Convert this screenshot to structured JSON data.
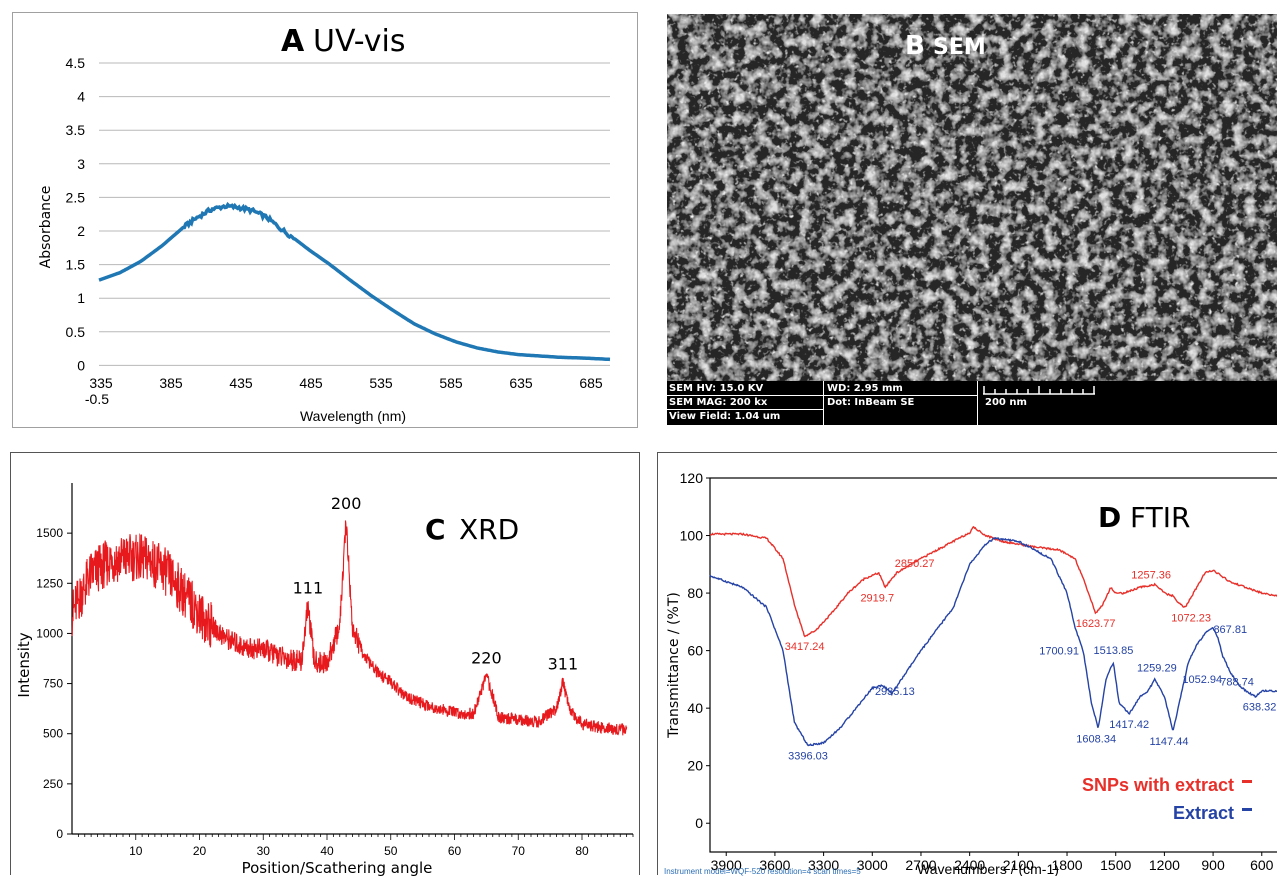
{
  "chart_data": [
    {
      "panel": "A",
      "type": "line",
      "title_letter": "A",
      "title": "UV-vis",
      "xlabel": "Wavelength (nm)",
      "ylabel": "Absorbance",
      "x_ticks": [
        "335",
        "385",
        "435",
        "485",
        "535",
        "585",
        "635",
        "685"
      ],
      "y_ticks": [
        "-0.5",
        "0",
        "0.5",
        "1",
        "1.5",
        "2",
        "2.5",
        "3",
        "3.5",
        "4",
        "4.5"
      ],
      "xlim": [
        335,
        700
      ],
      "ylim": [
        -0.5,
        4.5
      ],
      "grid": true,
      "series": [
        {
          "x": [
            335,
            350,
            365,
            380,
            395,
            405,
            415,
            425,
            435,
            445,
            455,
            465,
            475,
            485,
            500,
            515,
            530,
            545,
            560,
            575,
            590,
            605,
            620,
            635,
            650,
            665,
            680,
            700
          ],
          "y": [
            1.27,
            1.38,
            1.55,
            1.78,
            2.05,
            2.2,
            2.32,
            2.37,
            2.35,
            2.3,
            2.2,
            2.03,
            1.88,
            1.72,
            1.5,
            1.26,
            1.03,
            0.82,
            0.62,
            0.47,
            0.35,
            0.26,
            0.2,
            0.16,
            0.14,
            0.12,
            0.11,
            0.09
          ]
        }
      ],
      "color": "#1f77b4"
    },
    {
      "panel": "B",
      "type": "image",
      "title_letter": "B",
      "title": "SEM",
      "info": {
        "hv": "SEM HV: 15.0 KV",
        "mag": "SEM MAG: 200 kx",
        "field": "View Field: 1.04 um",
        "wd": "WD: 2.95 mm",
        "det": "Dot: InBeam SE",
        "scale": "200 nm"
      }
    },
    {
      "panel": "C",
      "type": "line",
      "title_letter": "C",
      "title": "XRD",
      "xlabel": "Position/Scathering angle",
      "ylabel": "Intensity",
      "x_ticks": [
        "10",
        "20",
        "30",
        "40",
        "50",
        "60",
        "70",
        "80"
      ],
      "y_ticks": [
        "0",
        "250",
        "500",
        "750",
        "1000",
        "1250",
        "1500"
      ],
      "xlim": [
        0,
        88
      ],
      "ylim": [
        0,
        1750
      ],
      "peaks": [
        {
          "label": "111",
          "x": 37,
          "y": 1140
        },
        {
          "label": "200",
          "x": 43,
          "y": 1560
        },
        {
          "label": "220",
          "x": 65,
          "y": 790
        },
        {
          "label": "311",
          "x": 77,
          "y": 760
        }
      ],
      "series": [
        {
          "x": [
            0,
            3,
            6,
            9,
            12,
            15,
            18,
            21,
            24,
            27,
            30,
            33,
            36,
            37,
            38,
            40,
            42,
            43,
            44,
            46,
            48,
            50,
            52,
            55,
            58,
            61,
            63,
            65,
            67,
            70,
            73,
            76,
            77,
            78,
            80,
            83,
            87
          ],
          "y": [
            1100,
            1300,
            1360,
            1380,
            1370,
            1300,
            1180,
            1060,
            980,
            930,
            920,
            880,
            860,
            1140,
            860,
            850,
            1040,
            1560,
            1020,
            880,
            800,
            760,
            690,
            650,
            620,
            600,
            600,
            790,
            580,
            570,
            560,
            620,
            760,
            620,
            550,
            530,
            520
          ]
        }
      ],
      "color": "#e8191d"
    },
    {
      "panel": "D",
      "type": "line",
      "title_letter": "D",
      "title": "FTIR",
      "xlabel": "Wavenumbers / (cm-1)",
      "ylabel": "Transmittance / (%T)",
      "footnote": "Instrument model=WQF-520 resolution=4 scan times=5",
      "x_ticks": [
        "3900",
        "3600",
        "3300",
        "3000",
        "2700",
        "2400",
        "2100",
        "1800",
        "1500",
        "1200",
        "900",
        "600"
      ],
      "y_ticks": [
        "0",
        "20",
        "40",
        "60",
        "80",
        "100",
        "120"
      ],
      "xlim": [
        4000,
        500
      ],
      "ylim": [
        -10,
        120
      ],
      "series": [
        {
          "name": "SNPs with extract",
          "color": "#e8302a",
          "x": [
            4000,
            3800,
            3650,
            3550,
            3480,
            3417,
            3350,
            3250,
            3150,
            3050,
            2960,
            2920,
            2880,
            2850,
            2700,
            2500,
            2400,
            2380,
            2300,
            2200,
            2000,
            1850,
            1750,
            1680,
            1624,
            1580,
            1530,
            1500,
            1450,
            1350,
            1257,
            1200,
            1150,
            1100,
            1072,
            1000,
            950,
            900,
            850,
            800,
            700,
            600,
            500
          ],
          "y": [
            100.5,
            100.5,
            99,
            92,
            76,
            65,
            67,
            73,
            80,
            85,
            87,
            82,
            85,
            87,
            92,
            98,
            101,
            103,
            100,
            98,
            96,
            95,
            92,
            82,
            73,
            76,
            82,
            80,
            80,
            82,
            83,
            80,
            79,
            76,
            75,
            82,
            87,
            88,
            86,
            84,
            82,
            80,
            79
          ]
        },
        {
          "name": "Extract",
          "color": "#2543a5",
          "x": [
            4000,
            3800,
            3650,
            3550,
            3480,
            3396,
            3300,
            3200,
            3100,
            3000,
            2935,
            2880,
            2700,
            2500,
            2400,
            2300,
            2250,
            2100,
            1900,
            1800,
            1750,
            1701,
            1650,
            1608,
            1560,
            1514,
            1480,
            1417,
            1350,
            1300,
            1259,
            1200,
            1147,
            1100,
            1052,
            1000,
            950,
            900,
            868,
            840,
            789,
            740,
            700,
            638,
            600,
            500
          ],
          "y": [
            86,
            82,
            75,
            60,
            35,
            27,
            28,
            33,
            40,
            47,
            48,
            45,
            60,
            75,
            90,
            97,
            99,
            98,
            92,
            80,
            68,
            60,
            42,
            33,
            50,
            56,
            42,
            38,
            44,
            46,
            50,
            44,
            32,
            44,
            56,
            62,
            66,
            68,
            64,
            58,
            52,
            48,
            46,
            44,
            46,
            46
          ]
        }
      ],
      "legend": [
        "SNPs with extract",
        "Extract"
      ],
      "peak_labels_red": [
        {
          "label": "3417.24",
          "x": 3417
        },
        {
          "label": "2919.7",
          "x": 2920
        },
        {
          "label": "2850.27",
          "x": 2850
        },
        {
          "label": "1623.77",
          "x": 1624
        },
        {
          "label": "1257.36",
          "x": 1257
        },
        {
          "label": "1072.23",
          "x": 1072
        }
      ],
      "peak_labels_blue": [
        {
          "label": "3396.03",
          "x": 3396
        },
        {
          "label": "2935.13",
          "x": 2935
        },
        {
          "label": "1700.91",
          "x": 1701
        },
        {
          "label": "1608.34",
          "x": 1608
        },
        {
          "label": "1513.85",
          "x": 1514
        },
        {
          "label": "1417.42",
          "x": 1417
        },
        {
          "label": "1259.29",
          "x": 1259
        },
        {
          "label": "1147.44",
          "x": 1147
        },
        {
          "label": "1052.94",
          "x": 1053
        },
        {
          "label": "867.81",
          "x": 868
        },
        {
          "label": "788.74",
          "x": 789
        },
        {
          "label": "638.32",
          "x": 638
        }
      ]
    }
  ]
}
